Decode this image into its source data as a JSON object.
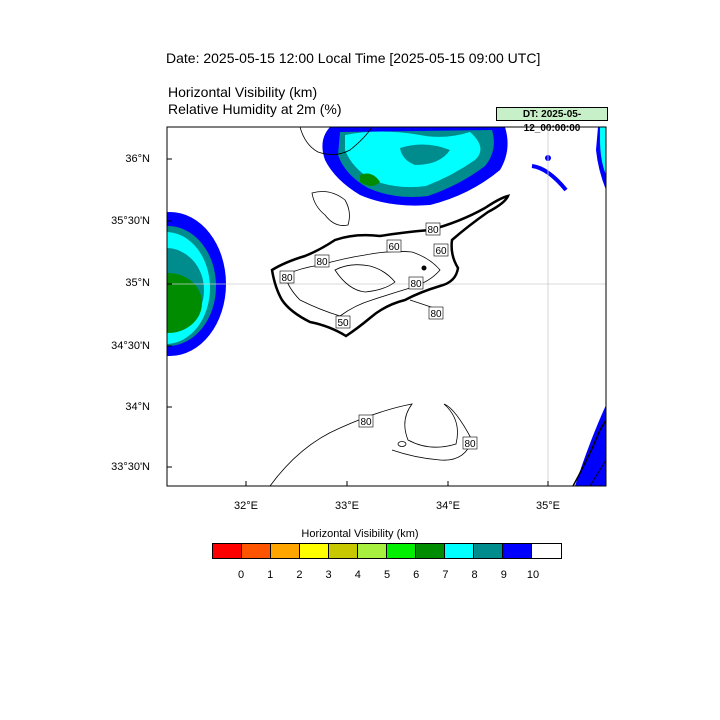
{
  "header": {
    "date_title": "Date: 2025-05-15  12:00 Local Time [2025-05-15  09:00 UTC]",
    "var_title_1": "Horizontal Visibility   (km)",
    "var_title_2": "Relative Humidity at 2m   (%)",
    "dt_badge": "DT: 2025-05-12_00:00:00"
  },
  "axes": {
    "lat_labels": [
      "36°N",
      "35°30'N",
      "35°N",
      "34°30'N",
      "34°N",
      "33°30'N"
    ],
    "lon_labels": [
      "32°E",
      "33°E",
      "34°E",
      "35°E"
    ]
  },
  "contour_labels": [
    "80",
    "60",
    "80",
    "60",
    "80",
    "80",
    "50",
    "80",
    "80",
    "80",
    "80"
  ],
  "legend": {
    "title": "Horizontal Visibility  (km)",
    "colors": [
      "#ff0000",
      "#ff5500",
      "#ffa500",
      "#ffff00",
      "#c8c800",
      "#a8f040",
      "#00f000",
      "#008c00",
      "#00ffff",
      "#008c8c",
      "#0000ff",
      "#ffffff"
    ],
    "labels": [
      "0",
      "1",
      "2",
      "3",
      "4",
      "5",
      "6",
      "7",
      "8",
      "9",
      "10"
    ]
  }
}
